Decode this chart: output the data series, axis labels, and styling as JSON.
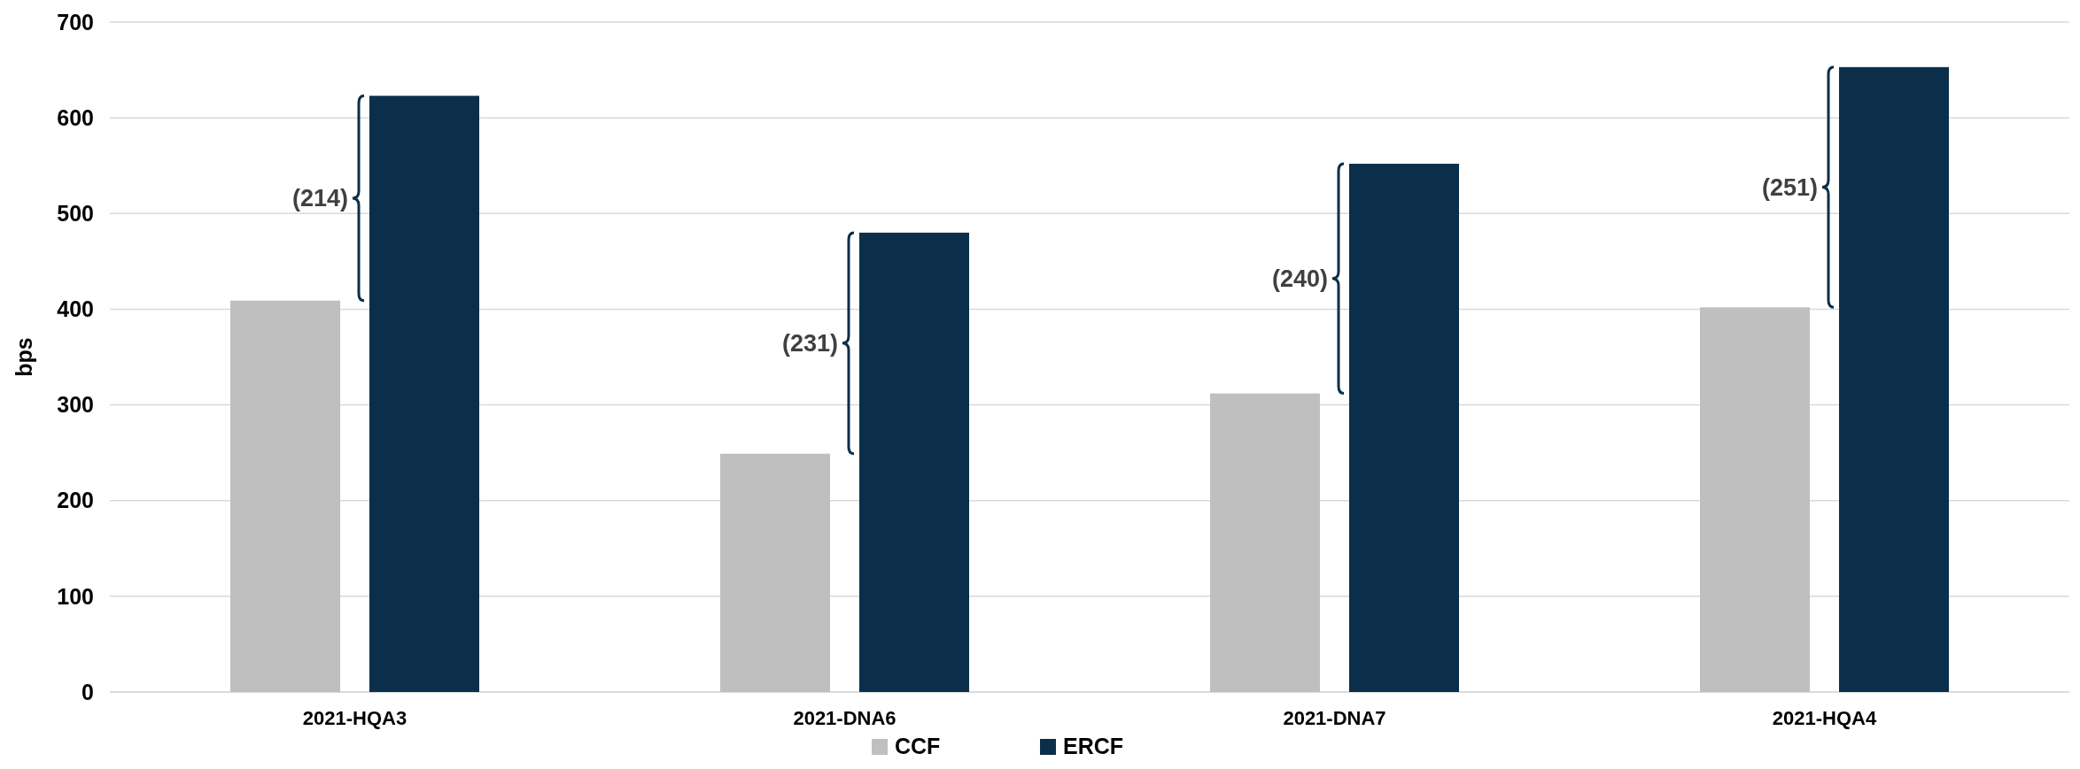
{
  "chart_data": {
    "type": "bar",
    "ylabel": "bps",
    "categories": [
      "2021-HQA3",
      "2021-DNA6",
      "2021-DNA7",
      "2021-HQA4"
    ],
    "series": [
      {
        "name": "CCF",
        "color": "#bfbfbf",
        "values": [
          409,
          249,
          312,
          402
        ]
      },
      {
        "name": "ERCF",
        "color": "#0b2f4a",
        "values": [
          623,
          480,
          552,
          653
        ]
      }
    ],
    "ylim": [
      0,
      700
    ],
    "yticks": [
      0,
      100,
      200,
      300,
      400,
      500,
      600,
      700
    ],
    "grid": "y",
    "legend": "bottom",
    "annotations": [
      "(214)",
      "(231)",
      "(240)",
      "(251)"
    ]
  }
}
